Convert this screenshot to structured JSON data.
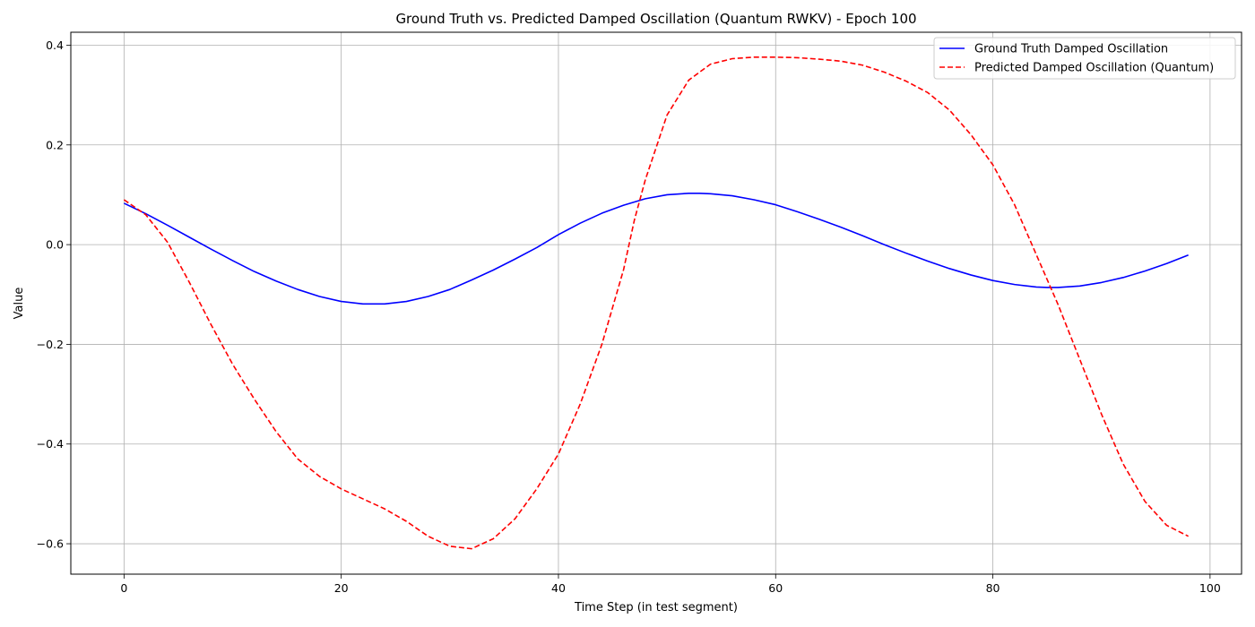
{
  "chart_data": {
    "type": "line",
    "title": "Ground Truth vs. Predicted Damped Oscillation (Quantum RWKV) - Epoch 100",
    "xlabel": "Time Step (in test segment)",
    "ylabel": "Value",
    "xlim": [
      -4.9,
      102.9
    ],
    "ylim": [
      -0.661,
      0.426
    ],
    "xticks": [
      0,
      20,
      40,
      60,
      80,
      100
    ],
    "xtick_labels": [
      "0",
      "20",
      "40",
      "60",
      "80",
      "100"
    ],
    "yticks": [
      -0.6,
      -0.4,
      -0.2,
      0.0,
      0.2,
      0.4
    ],
    "ytick_labels": [
      "−0.6",
      "−0.4",
      "−0.2",
      "0.0",
      "0.2",
      "0.4"
    ],
    "grid": true,
    "legend_position": "upper-right",
    "series": [
      {
        "name": "Ground Truth Damped Oscillation",
        "color": "#0000ff",
        "style": "solid",
        "x": [
          0,
          2,
          4,
          6,
          8,
          10,
          12,
          14,
          16,
          18,
          20,
          22,
          24,
          26,
          28,
          30,
          32,
          34,
          36,
          38,
          40,
          42,
          44,
          46,
          48,
          50,
          52,
          53,
          54,
          56,
          58,
          60,
          62,
          64,
          66,
          68,
          70,
          72,
          74,
          76,
          78,
          80,
          82,
          84,
          85,
          86,
          88,
          90,
          92,
          94,
          96,
          98
        ],
        "y": [
          0.083,
          0.062,
          0.039,
          0.015,
          -0.009,
          -0.032,
          -0.054,
          -0.073,
          -0.09,
          -0.104,
          -0.114,
          -0.119,
          -0.119,
          -0.114,
          -0.104,
          -0.09,
          -0.071,
          -0.051,
          -0.029,
          -0.006,
          0.02,
          0.043,
          0.063,
          0.079,
          0.092,
          0.1,
          0.103,
          0.103,
          0.102,
          0.098,
          0.09,
          0.08,
          0.066,
          0.051,
          0.035,
          0.018,
          0.0,
          -0.017,
          -0.033,
          -0.048,
          -0.061,
          -0.072,
          -0.08,
          -0.085,
          -0.086,
          -0.086,
          -0.083,
          -0.076,
          -0.066,
          -0.053,
          -0.038,
          -0.021
        ]
      },
      {
        "name": "Predicted Damped Oscillation (Quantum)",
        "color": "#ff0000",
        "style": "dashed",
        "x": [
          0,
          2,
          4,
          6,
          8,
          10,
          12,
          14,
          16,
          18,
          20,
          22,
          24,
          26,
          28,
          30,
          32,
          34,
          36,
          38,
          40,
          42,
          44,
          46,
          47,
          48,
          50,
          52,
          54,
          56,
          58,
          60,
          62,
          64,
          66,
          68,
          70,
          72,
          74,
          76,
          78,
          80,
          82,
          84,
          86,
          88,
          90,
          92,
          94,
          96,
          98
        ],
        "y": [
          0.09,
          0.06,
          0.005,
          -0.075,
          -0.16,
          -0.24,
          -0.31,
          -0.375,
          -0.43,
          -0.465,
          -0.49,
          -0.51,
          -0.53,
          -0.555,
          -0.585,
          -0.605,
          -0.61,
          -0.59,
          -0.55,
          -0.49,
          -0.42,
          -0.32,
          -0.2,
          -0.05,
          0.05,
          0.13,
          0.26,
          0.33,
          0.362,
          0.373,
          0.376,
          0.376,
          0.375,
          0.372,
          0.368,
          0.36,
          0.346,
          0.328,
          0.305,
          0.27,
          0.22,
          0.16,
          0.08,
          -0.02,
          -0.12,
          -0.23,
          -0.34,
          -0.44,
          -0.515,
          -0.563,
          -0.585
        ]
      }
    ]
  }
}
